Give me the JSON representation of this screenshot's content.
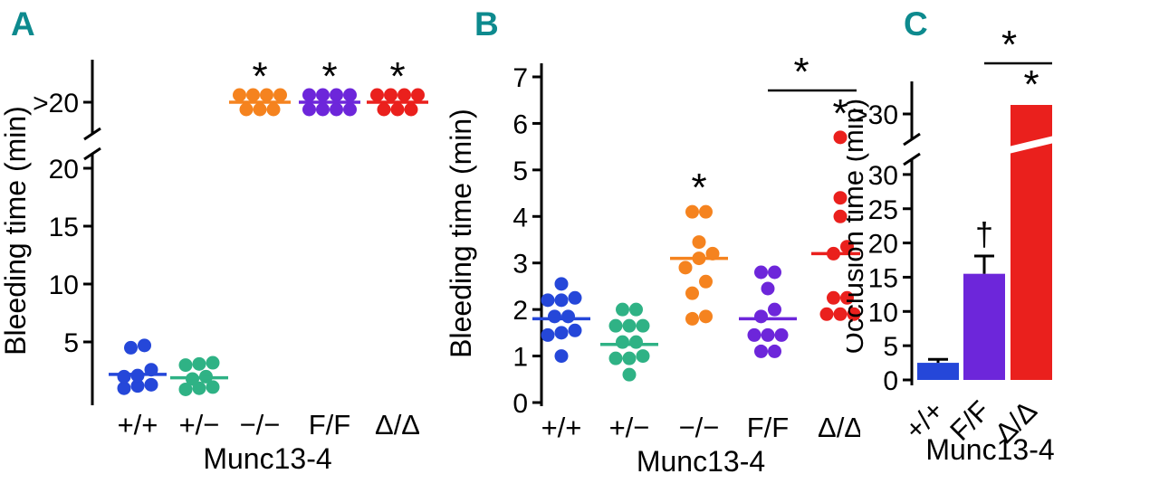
{
  "panel_letter_color": "#0d8a8e",
  "palette": {
    "blue": "#2547d9",
    "green": "#2fb285",
    "orange": "#f5831f",
    "purple": "#6d26da",
    "red": "#ea201d",
    "axis": "#000000"
  },
  "panels": [
    {
      "label": "A"
    },
    {
      "label": "B"
    },
    {
      "label": "C"
    }
  ],
  "chart_data": [
    {
      "type": "scatter",
      "panel": "A",
      "title": "",
      "ylabel": "Bleeding time (min)",
      "xlabel": "Munc13-4",
      "ylim": [
        0,
        20
      ],
      "yticks": [
        5,
        10,
        15,
        20
      ],
      "axis_break": {
        "above_tick_label": ">20"
      },
      "categories": [
        "+/+",
        "+/−",
        "−/−",
        "F/F",
        "Δ/Δ"
      ],
      "groups": [
        {
          "category": "+/+",
          "color_key": "blue",
          "censored": false,
          "mean": 2.2,
          "values": [
            1.0,
            1.2,
            1.3,
            2.0,
            2.1,
            2.6,
            4.5,
            4.7
          ],
          "sig_label": ""
        },
        {
          "category": "+/−",
          "color_key": "green",
          "censored": false,
          "mean": 1.9,
          "values": [
            0.9,
            1.0,
            1.1,
            1.8,
            2.0,
            3.0,
            3.1,
            3.2
          ],
          "sig_label": ""
        },
        {
          "category": "−/−",
          "color_key": "orange",
          "censored": true,
          "n_points": 7,
          "censored_value_label": ">20",
          "sig_label": "*"
        },
        {
          "category": "F/F",
          "color_key": "purple",
          "censored": true,
          "n_points": 8,
          "censored_value_label": ">20",
          "sig_label": "*"
        },
        {
          "category": "Δ/Δ",
          "color_key": "red",
          "censored": true,
          "n_points": 7,
          "censored_value_label": ">20",
          "sig_label": "*"
        }
      ]
    },
    {
      "type": "scatter",
      "panel": "B",
      "title": "",
      "ylabel": "Bleeding time (min)",
      "xlabel": "Munc13-4",
      "ylim": [
        0,
        7
      ],
      "yticks": [
        0,
        1,
        2,
        3,
        4,
        5,
        6,
        7
      ],
      "categories": [
        "+/+",
        "+/−",
        "−/−",
        "F/F",
        "Δ/Δ"
      ],
      "groups": [
        {
          "category": "+/+",
          "color_key": "blue",
          "censored": false,
          "mean": 1.8,
          "values": [
            1.0,
            1.45,
            1.5,
            1.55,
            1.85,
            1.85,
            2.2,
            2.2,
            2.25,
            2.55
          ],
          "sig_label": ""
        },
        {
          "category": "+/−",
          "color_key": "green",
          "censored": false,
          "mean": 1.25,
          "values": [
            0.6,
            0.95,
            0.95,
            1.0,
            1.3,
            1.3,
            1.65,
            1.65,
            1.65,
            2.0,
            2.0
          ],
          "sig_label": ""
        },
        {
          "category": "−/−",
          "color_key": "orange",
          "censored": false,
          "mean": 3.1,
          "values": [
            1.8,
            1.85,
            2.35,
            2.6,
            2.9,
            3.1,
            3.2,
            3.45,
            4.1,
            4.1
          ],
          "sig_label": "*"
        },
        {
          "category": "F/F",
          "color_key": "purple",
          "censored": false,
          "mean": 1.8,
          "values": [
            1.1,
            1.1,
            1.45,
            1.45,
            1.45,
            1.85,
            2.0,
            2.45,
            2.8,
            2.8
          ],
          "sig_label": ""
        },
        {
          "category": "Δ/Δ",
          "color_key": "red",
          "censored": false,
          "mean": 3.2,
          "values": [
            1.9,
            1.9,
            1.9,
            2.25,
            2.25,
            3.2,
            3.35,
            4.0,
            4.4,
            5.7
          ],
          "sig_label": "*"
        }
      ],
      "comparison": {
        "from": "F/F",
        "to": "Δ/Δ",
        "label": "*"
      }
    },
    {
      "type": "bar",
      "panel": "C",
      "title": "",
      "ylabel": "Occlusion time (min)",
      "xlabel": "Munc13-4",
      "ylim": [
        0,
        30
      ],
      "yticks": [
        0,
        5,
        10,
        15,
        20,
        25,
        30
      ],
      "axis_break": {
        "above_tick_label": ">30"
      },
      "categories": [
        "+/+",
        "F/F",
        "Δ/Δ"
      ],
      "bars": [
        {
          "category": "+/+",
          "color_key": "blue",
          "value": 2.5,
          "error": 0.5,
          "censored": false,
          "sig_label": ""
        },
        {
          "category": "F/F",
          "color_key": "purple",
          "value": 15.5,
          "error": 2.6,
          "censored": false,
          "sig_label": "†"
        },
        {
          "category": "Δ/Δ",
          "color_key": "red",
          "value": 30,
          "error": 0,
          "censored": true,
          "censored_value_label": ">30",
          "sig_label": "*"
        }
      ],
      "comparison": {
        "from": "F/F",
        "to": "Δ/Δ",
        "label": "*"
      }
    }
  ]
}
